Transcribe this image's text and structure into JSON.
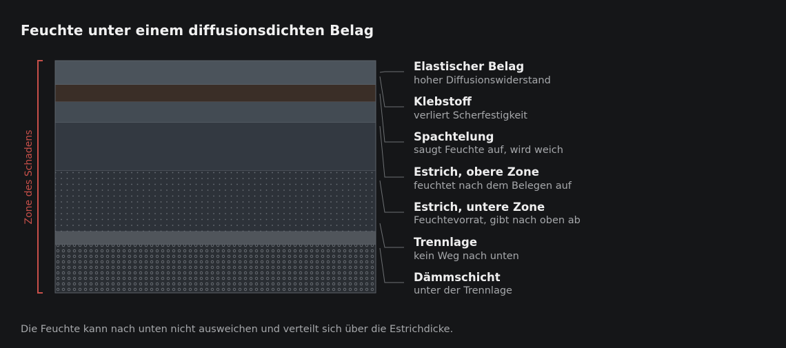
{
  "title": "Feuchte unter einem diffusionsdichten Belag",
  "zone_label": "Zone des Schadens",
  "caption": "Die Feuchte kann nach unten nicht ausweichen und verteilt sich über die Estrichdicke.",
  "colors": {
    "background": "#151618",
    "zone_bracket": "#c8504a",
    "leader": "#6d7073"
  },
  "layers": [
    {
      "name": "Elastischer Belag",
      "note": "hoher Diffusionswiderstand",
      "fill": "#4b535b",
      "pattern": "none"
    },
    {
      "name": "Klebstoff",
      "note": "verliert Scherfestigkeit",
      "fill": "#3a2e27",
      "pattern": "none"
    },
    {
      "name": "Spachtelung",
      "note": "saugt Feuchte auf, wird weich",
      "fill": "#434b53",
      "pattern": "none"
    },
    {
      "name": "Estrich, obere Zone",
      "note": "feuchtet nach dem Belegen auf",
      "fill": "#333941",
      "pattern": "none"
    },
    {
      "name": "Estrich, untere Zone",
      "note": "Feuchtevorrat, gibt nach oben ab",
      "fill": "#2d3239",
      "pattern": "dots"
    },
    {
      "name": "Trennlage",
      "note": "kein Weg nach unten",
      "fill": "#50555b",
      "pattern": "none"
    },
    {
      "name": "Dämmschicht",
      "note": "unter der Trennlage",
      "fill": "#2a2e33",
      "pattern": "circles"
    }
  ]
}
